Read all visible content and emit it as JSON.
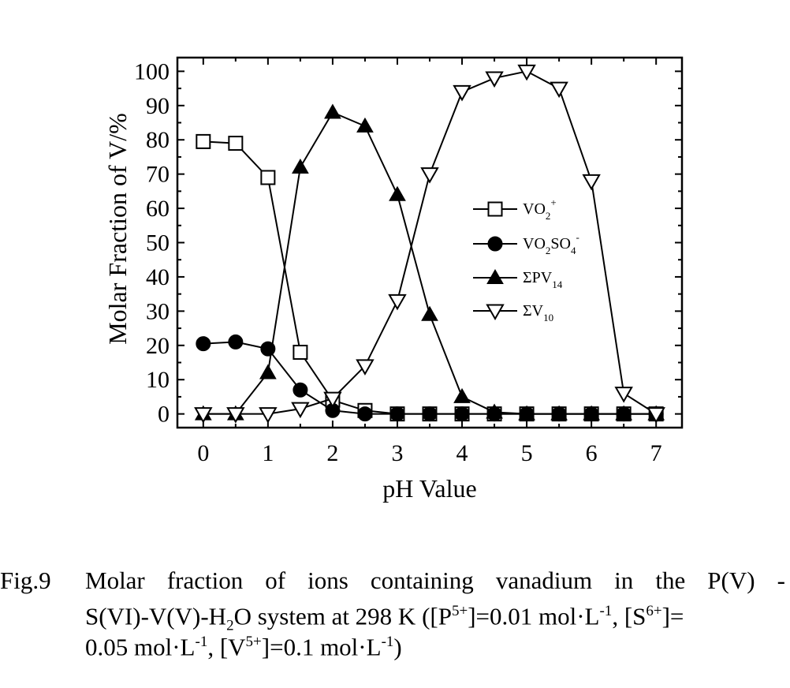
{
  "chart_data": {
    "type": "line",
    "title": "",
    "xlabel": "pH Value",
    "ylabel": "Molar Fraction of V/%",
    "xlim": [
      -0.4,
      7.4
    ],
    "ylim": [
      -4,
      104
    ],
    "xticks": [
      0,
      1,
      2,
      3,
      4,
      5,
      6,
      7
    ],
    "yticks": [
      0,
      10,
      20,
      30,
      40,
      50,
      60,
      70,
      80,
      90,
      100
    ],
    "xtick_labels": [
      "0",
      "1",
      "2",
      "3",
      "4",
      "5",
      "6",
      "7"
    ],
    "ytick_labels": [
      "0",
      "10",
      "20",
      "30",
      "40",
      "50",
      "60",
      "70",
      "80",
      "90",
      "100"
    ],
    "grid": false,
    "legend_position": "center-right",
    "x": [
      0,
      0.5,
      1,
      1.5,
      2,
      2.5,
      3,
      3.5,
      4,
      4.5,
      5,
      5.5,
      6,
      6.5,
      7
    ],
    "series": [
      {
        "name": "VO2+",
        "marker": "square-open",
        "label_main": "VO",
        "label_sub": "2",
        "label_sup": "+",
        "values": [
          79.5,
          79,
          69,
          18,
          4,
          1,
          0,
          0,
          0,
          0,
          0,
          0,
          0,
          0,
          0
        ]
      },
      {
        "name": "VO2SO4-",
        "marker": "circle-filled",
        "label_main": "VO",
        "label_sub": "2",
        "label_mid": "SO",
        "label_sub2": "4",
        "label_sup": "-",
        "values": [
          20.5,
          21,
          19,
          7,
          1,
          0,
          0,
          0,
          0,
          0,
          0,
          0,
          0,
          0,
          0
        ]
      },
      {
        "name": "ΣPV14",
        "marker": "triangle-up-filled",
        "label_main": "ΣPV",
        "label_sub": "14",
        "values": [
          0,
          0,
          12,
          72,
          88,
          84,
          64,
          29,
          5,
          0.5,
          0,
          0,
          0,
          0,
          0
        ]
      },
      {
        "name": "ΣV10",
        "marker": "triangle-down-open",
        "label_main": "ΣV",
        "label_sub": "10",
        "values": [
          0,
          0,
          0,
          1.5,
          4.5,
          14,
          33,
          70,
          94,
          98,
          100,
          95,
          68,
          6,
          0
        ]
      }
    ]
  },
  "caption": {
    "label": "Fig.9",
    "line1_words": [
      "Molar",
      "fraction",
      "of",
      "ions",
      "containing",
      "vanadium",
      "in",
      "the",
      "P(V)",
      "-"
    ],
    "line2": {
      "a": "S(VI)-V(V)-H",
      "a_sub": "2",
      "b": "O system at 298 K ([P",
      "b_sup": "5+",
      "c": "]=0.01 mol·L",
      "c_sup": "-1",
      "d": ", [S",
      "d_sup": "6+",
      "e": "]="
    },
    "line3": {
      "a": "0.05 mol·L",
      "a_sup": "-1",
      "b": ", [V",
      "b_sup": "5+",
      "c": "]=0.1 mol·L",
      "c_sup": "-1",
      "d": ")"
    }
  }
}
